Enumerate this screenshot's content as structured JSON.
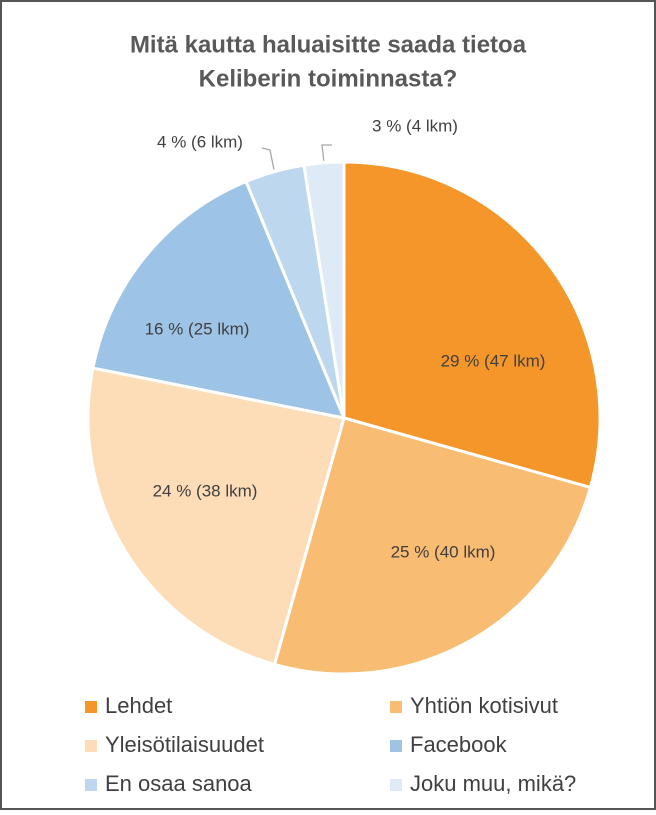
{
  "chart_data": {
    "type": "pie",
    "title": "Mitä kautta haluaisitte saada tietoa",
    "subtitle": "Keliberin toiminnasta?",
    "categories": [
      "Lehdet",
      "Yhtiön kotisivut",
      "Yleisötilaisuudet",
      "Facebook",
      "En osaa sanoa",
      "Joku muu, mikä?"
    ],
    "values": [
      47,
      40,
      38,
      25,
      6,
      4
    ],
    "value_labels": [
      "29 % (47 lkm)",
      "25 % (40 lkm)",
      "24 % (38 lkm)",
      "16 % (25 lkm)",
      "4 % (6 lkm)",
      "3 % (4 lkm)"
    ],
    "colors": [
      "#f4962a",
      "#f8bc73",
      "#fcddb8",
      "#9dc3e6",
      "#bdd7ee",
      "#deebf7"
    ],
    "legend": "bottom"
  }
}
